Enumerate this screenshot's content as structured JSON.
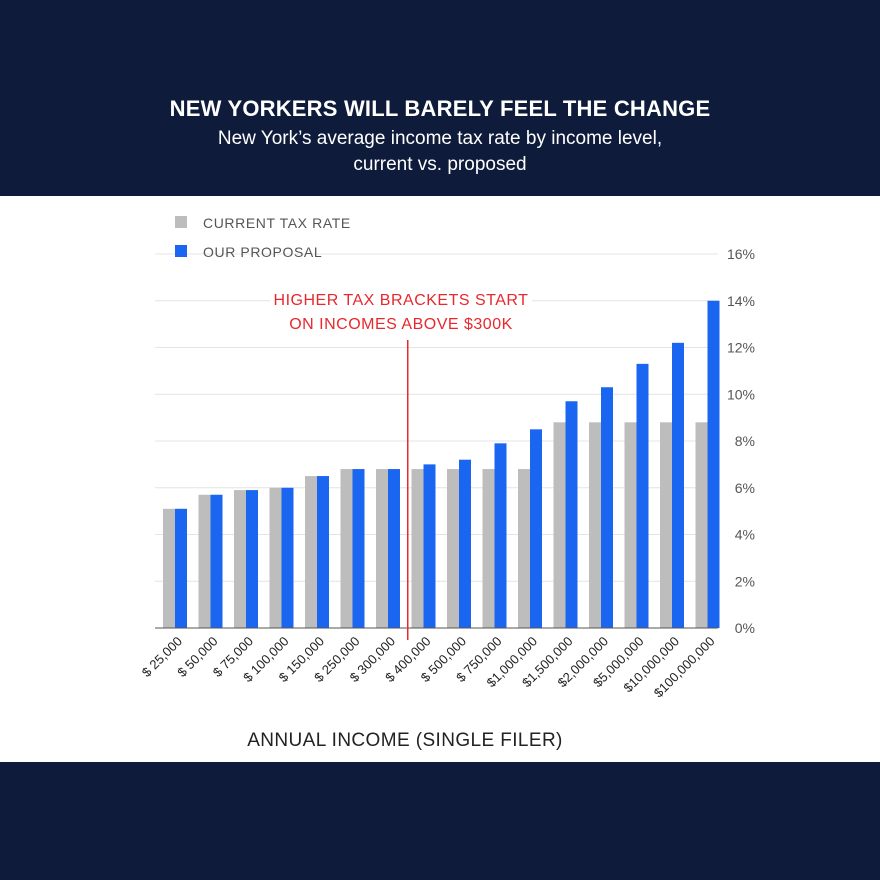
{
  "header": {
    "title": "NEW YORKERS WILL BARELY FEEL THE CHANGE",
    "subtitle": "New York’s average income tax rate by income level, current vs. proposed"
  },
  "colors": {
    "background": "#0f1b3a",
    "current": "#bdbdbd",
    "proposal": "#1a66f0",
    "annotation": "#e8282d"
  },
  "chart_data": {
    "type": "bar",
    "categories": [
      "$ 25,000",
      "$ 50,000",
      "$ 75,000",
      "$ 100,000",
      "$ 150,000",
      "$ 250,000",
      "$ 300,000",
      "$ 400,000",
      "$ 500,000",
      "$ 750,000",
      "$1,000,000",
      "$1,500,000",
      "$2,000,000",
      "$5,000,000",
      "$10,000,000",
      "$100,000,000"
    ],
    "series": [
      {
        "name": "CURRENT TAX RATE",
        "values": [
          5.1,
          5.7,
          5.9,
          6.0,
          6.5,
          6.8,
          6.8,
          6.8,
          6.8,
          6.8,
          6.8,
          8.8,
          8.8,
          8.8,
          8.8,
          8.8
        ]
      },
      {
        "name": "OUR PROPOSAL",
        "values": [
          5.1,
          5.7,
          5.9,
          6.0,
          6.5,
          6.8,
          6.8,
          7.0,
          7.2,
          7.9,
          8.5,
          9.7,
          10.3,
          11.3,
          12.2,
          14.0
        ]
      }
    ],
    "xlabel": "ANNUAL INCOME (SINGLE FILER)",
    "ylabel": "",
    "ylim": [
      0,
      16
    ],
    "yticks": [
      "0%",
      "2%",
      "4%",
      "6%",
      "8%",
      "10%",
      "12%",
      "14%",
      "16%"
    ],
    "grid": true,
    "legend": "top-left",
    "annotation": {
      "line1": "HIGHER TAX BRACKETS START",
      "line2": "ON INCOMES ABOVE $300K",
      "after_category": "$ 300,000"
    }
  }
}
